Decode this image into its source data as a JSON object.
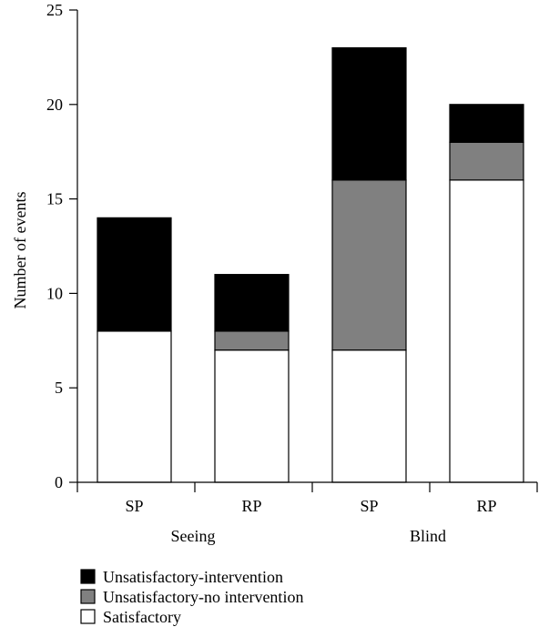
{
  "chart_data": {
    "type": "bar",
    "stacked": true,
    "ylabel": "Number of events",
    "xlabel": "",
    "ylim": [
      0,
      25
    ],
    "yticks": [
      0,
      5,
      10,
      15,
      20,
      25
    ],
    "groups": [
      {
        "label": "Seeing",
        "categories": [
          "SP",
          "RP"
        ]
      },
      {
        "label": "Blind",
        "categories": [
          "SP",
          "RP"
        ]
      }
    ],
    "categories": [
      "SP",
      "RP",
      "SP",
      "RP"
    ],
    "series": [
      {
        "name": "Satisfactory",
        "color": "#ffffff",
        "values": [
          8,
          7,
          7,
          16
        ]
      },
      {
        "name": "Unsatisfactory-no intervention",
        "color": "#808080",
        "values": [
          0,
          1,
          9,
          2
        ]
      },
      {
        "name": "Unsatisfactory-intervention",
        "color": "#000000",
        "values": [
          6,
          3,
          7,
          2
        ]
      }
    ],
    "legend_order": [
      "Unsatisfactory-intervention",
      "Unsatisfactory-no intervention",
      "Satisfactory"
    ],
    "legend_position": "bottom-left",
    "grid": false
  }
}
